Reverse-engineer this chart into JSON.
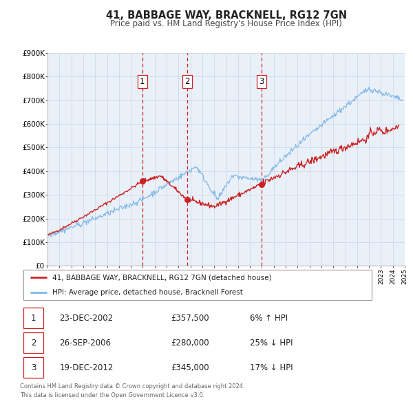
{
  "title": "41, BABBAGE WAY, BRACKNELL, RG12 7GN",
  "subtitle": "Price paid vs. HM Land Registry's House Price Index (HPI)",
  "red_label": "41, BABBAGE WAY, BRACKNELL, RG12 7GN (detached house)",
  "blue_label": "HPI: Average price, detached house, Bracknell Forest",
  "transactions": [
    {
      "num": 1,
      "date": "23-DEC-2002",
      "price": 357500,
      "pct": "6%",
      "dir": "↑",
      "year": 2002.97
    },
    {
      "num": 2,
      "date": "26-SEP-2006",
      "price": 280000,
      "pct": "25%",
      "dir": "↓",
      "year": 2006.73
    },
    {
      "num": 3,
      "date": "19-DEC-2012",
      "price": 345000,
      "pct": "17%",
      "dir": "↓",
      "year": 2012.97
    }
  ],
  "ylabel_ticks": [
    "£0",
    "£100K",
    "£200K",
    "£300K",
    "£400K",
    "£500K",
    "£600K",
    "£700K",
    "£800K",
    "£900K"
  ],
  "ytick_vals": [
    0,
    100000,
    200000,
    300000,
    400000,
    500000,
    600000,
    700000,
    800000,
    900000
  ],
  "xmin": 1995,
  "xmax": 2025,
  "ymin": 0,
  "ymax": 900000,
  "grid_color": "#d0d8e8",
  "plot_bg": "#eaf0f8",
  "red_color": "#cc2222",
  "blue_color": "#7fb8e8",
  "vline_color": "#cc2222",
  "footnote": "Contains HM Land Registry data © Crown copyright and database right 2024.\nThis data is licensed under the Open Government Licence v3.0."
}
